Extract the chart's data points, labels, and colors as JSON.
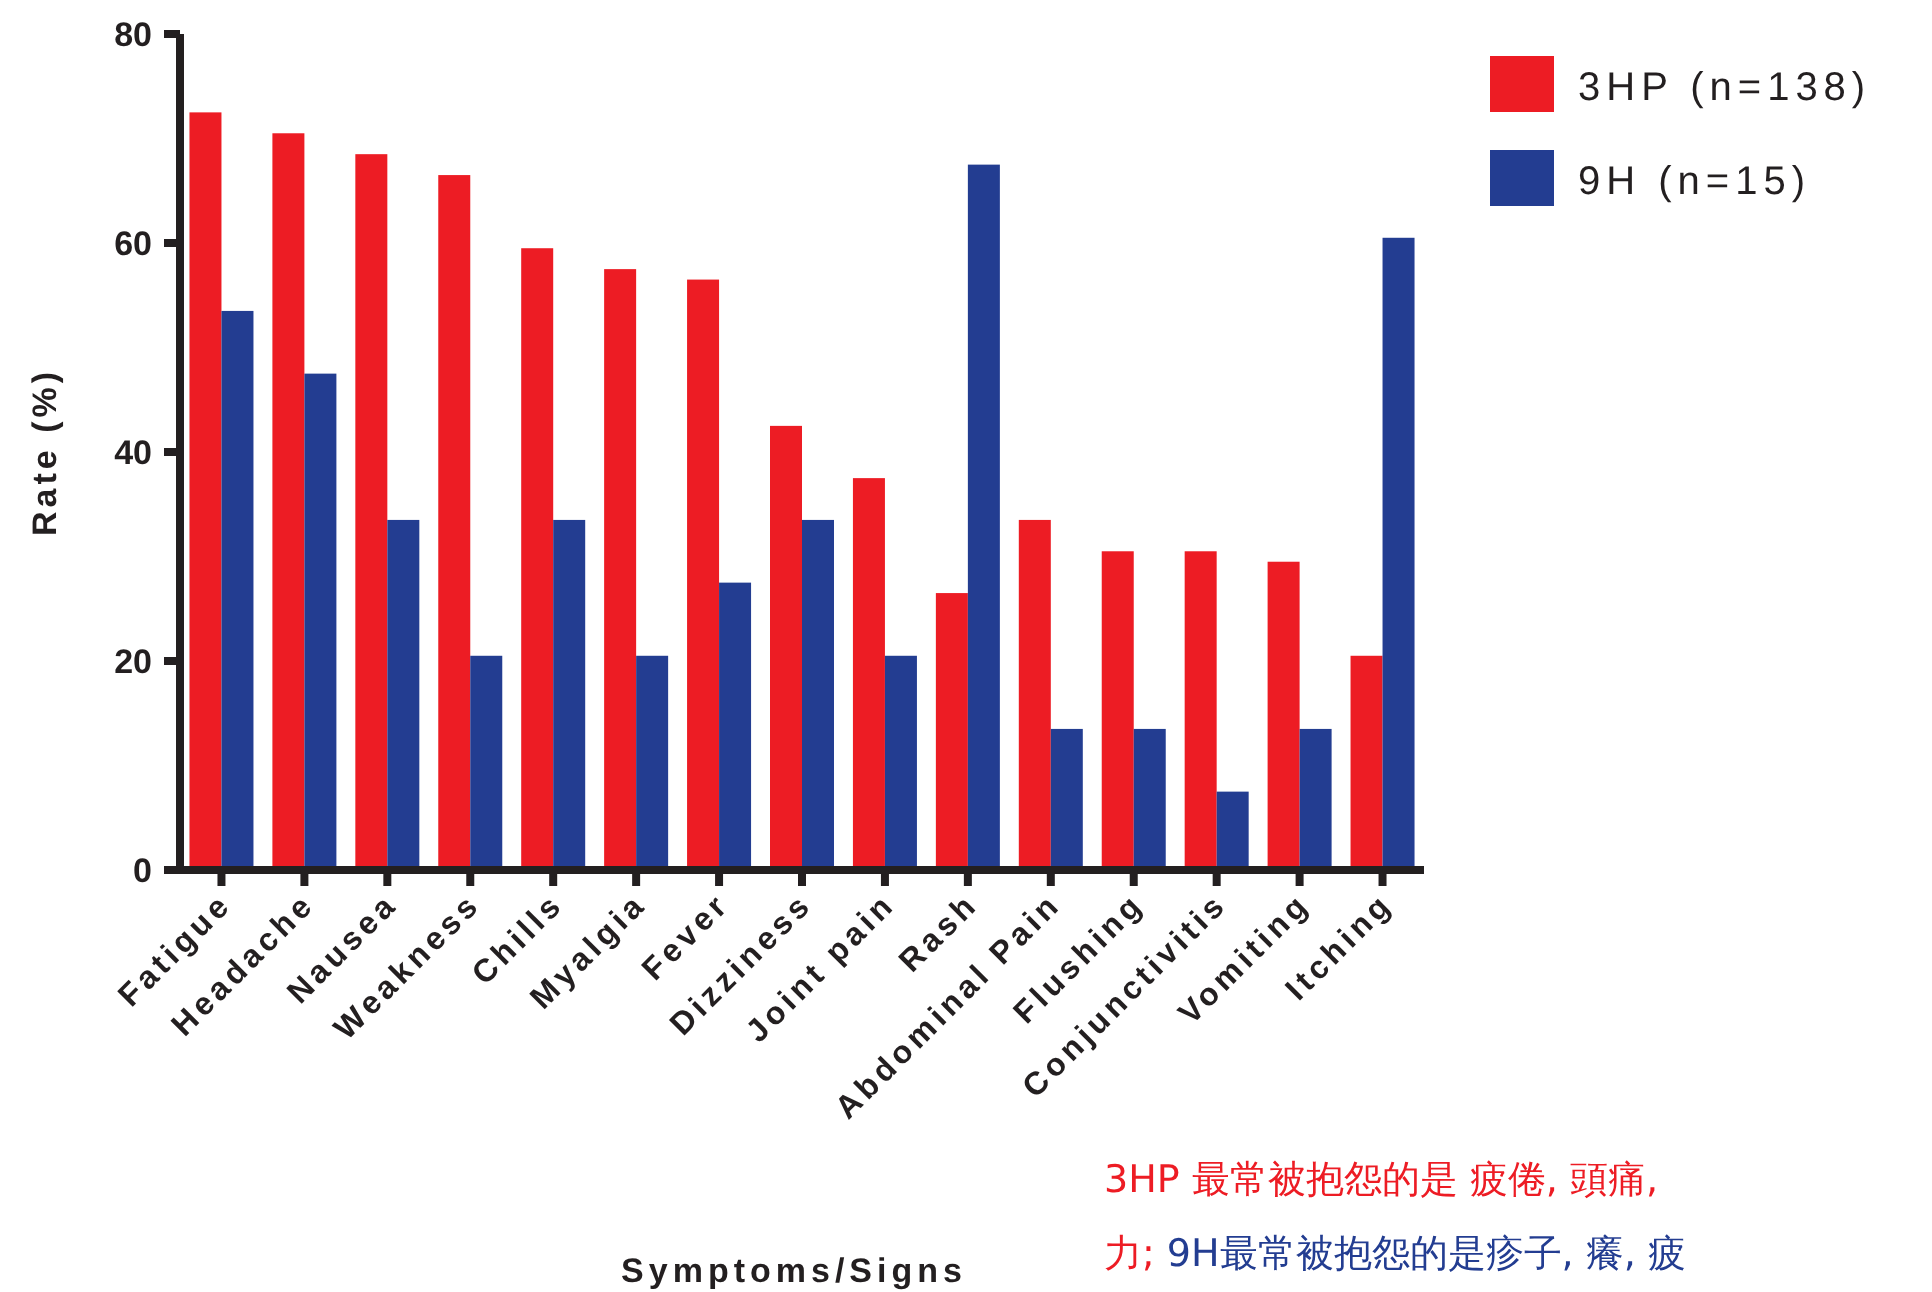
{
  "chart_data": {
    "type": "bar",
    "xlabel": "Symptoms/Signs",
    "ylabel": "Rate (%)",
    "categories": [
      "Fatigue",
      "Headache",
      "Nausea",
      "Weakness",
      "Chills",
      "Myalgia",
      "Fever",
      "Dizziness",
      "Joint pain",
      "Rash",
      "Abdominal Pain",
      "Flushing",
      "Conjunctivitis",
      "Vomiting",
      "Itching"
    ],
    "series": [
      {
        "name": "3HP (n=138)",
        "color": "#ed1c24",
        "values": [
          72.5,
          70.5,
          68.5,
          66.5,
          59.5,
          57.5,
          56.5,
          42.5,
          37.5,
          26.5,
          33.5,
          30.5,
          30.5,
          29.5,
          20.5
        ]
      },
      {
        "name": "9H (n=15)",
        "color": "#233d91",
        "values": [
          53.5,
          47.5,
          33.5,
          20.5,
          33.5,
          20.5,
          27.5,
          33.5,
          20.5,
          67.5,
          13.5,
          13.5,
          7.5,
          13.5,
          60.5
        ]
      }
    ],
    "ylim": [
      0,
      80
    ],
    "yticks": [
      0,
      20,
      40,
      60,
      80
    ],
    "legend": "top right",
    "annotations": [
      "3HP 最常被抱怨的是 疲倦, 頭痛,",
      "力;",
      "9H最常被抱怨的是疹子, 癢, 疲"
    ]
  }
}
